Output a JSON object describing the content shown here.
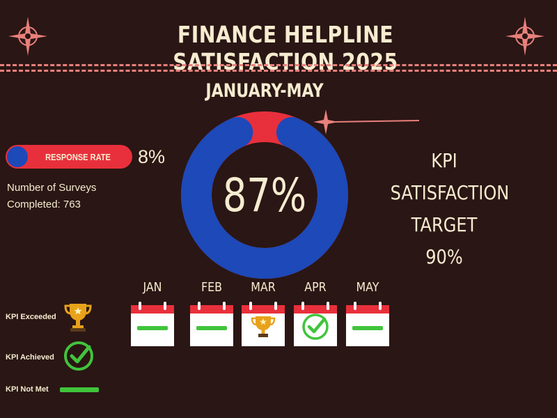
{
  "header": {
    "title": "FINANCE HELPLINE SATISFACTION 2025",
    "period": "JANUARY-MAY"
  },
  "response": {
    "label": "RESPONSE RATE",
    "rate": "8%",
    "surveys_line1": "Number of Surveys",
    "surveys_line2": "Completed: 763"
  },
  "satisfaction": {
    "value_text": "87%",
    "value": 87,
    "ring_color": "#1d49b9",
    "gap_color": "#e8303c"
  },
  "kpi": {
    "line1": "KPI",
    "line2": "SATISFACTION",
    "line3": "TARGET 90%"
  },
  "months": [
    {
      "label": "JAN",
      "status": "not-met"
    },
    {
      "label": "FEB",
      "status": "not-met"
    },
    {
      "label": "MAR",
      "status": "exceeded"
    },
    {
      "label": "APR",
      "status": "achieved"
    },
    {
      "label": "MAY",
      "status": "not-met"
    }
  ],
  "legend": {
    "exceeded": "KPI Exceeded",
    "achieved": "KPI Achieved",
    "not_met": "KPI Not Met"
  },
  "colors": {
    "background": "#2a1614",
    "accent_red": "#e8303c",
    "accent_blue": "#1d49b9",
    "green": "#41c43c",
    "gold": "#e8a21a",
    "cream": "#f6ecd0",
    "dash": "#e8807c"
  },
  "icons": {
    "corner": "sparkle-star-icon",
    "exceeded": "trophy-icon",
    "achieved": "check-circle-icon",
    "not_met": "green-bar-icon",
    "calendar": "calendar-icon"
  }
}
